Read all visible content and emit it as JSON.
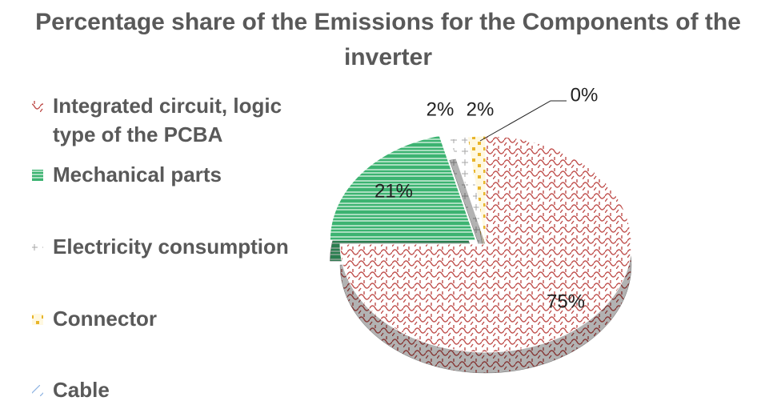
{
  "chart_data": {
    "type": "pie3d",
    "title": "Percentage share of the Emissions for the Components of the inverter",
    "categories": [
      "Integrated circuit, logic type of the PCBA",
      "Mechanical parts",
      "Electricity consumption",
      "Connector",
      "Cable"
    ],
    "values": [
      75,
      21,
      2,
      2,
      0
    ],
    "value_labels": [
      "75%",
      "21%",
      "2%",
      "2%",
      "0%"
    ],
    "colors": [
      "#c0504d",
      "#3cb371",
      "#a6a6a6",
      "#e8b52a",
      "#8db3e2"
    ],
    "exploded": [
      1
    ],
    "legend": "left"
  }
}
